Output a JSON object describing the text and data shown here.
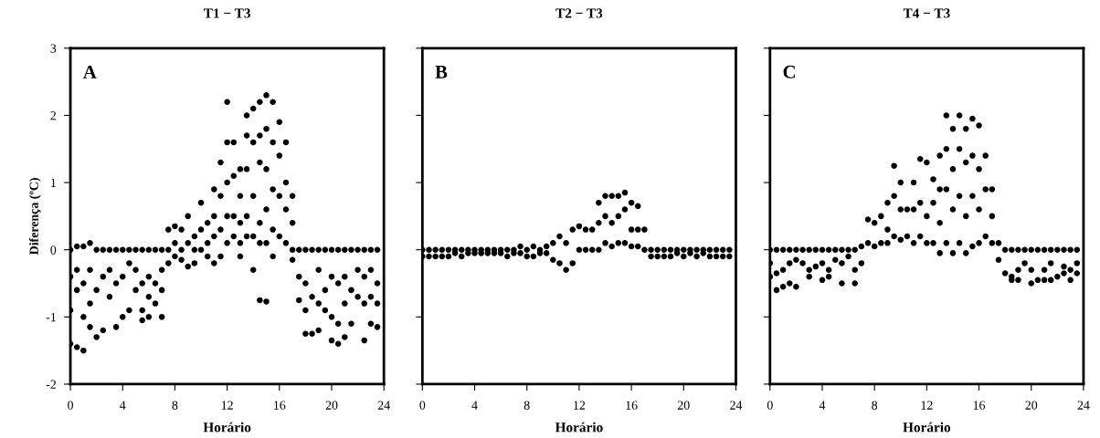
{
  "chart_data": [
    {
      "type": "scatter",
      "title": "T1 − T3",
      "xlabel": "Horário",
      "ylabel": "Diferença (ºC)",
      "annotations": [
        "A"
      ],
      "marker": "circle",
      "grid": false,
      "xlim": [
        0,
        24
      ],
      "xticks": [
        0,
        4,
        8,
        12,
        16,
        20,
        24
      ],
      "ylim": [
        -2,
        3
      ],
      "yticks": [
        -2,
        -1,
        0,
        1,
        2,
        3
      ],
      "series": [
        {
          "color": "#000000",
          "x": [
            0,
            0,
            0,
            0,
            0.5,
            0.5,
            0.5,
            0.5,
            1,
            1,
            1,
            1,
            1.5,
            1.5,
            1.5,
            1.5,
            2,
            2,
            2,
            2.5,
            2.5,
            2.5,
            3,
            3,
            3,
            3.5,
            3.5,
            3.5,
            4,
            4,
            4,
            4.5,
            4.5,
            4.5,
            5,
            5,
            5,
            5.5,
            5.5,
            5.5,
            5.5,
            6,
            6,
            6,
            6,
            6.5,
            6.5,
            6.5,
            7,
            7,
            7,
            7,
            7.5,
            7.5,
            7.5,
            8,
            8,
            8,
            8.5,
            8.5,
            8.5,
            9,
            9,
            9,
            9.5,
            9.5,
            9.5,
            10,
            10,
            10,
            10.5,
            10.5,
            10.5,
            11,
            11,
            11,
            11,
            11.5,
            11.5,
            11.5,
            11.5,
            12,
            12,
            12,
            12,
            12,
            12.5,
            12.5,
            12.5,
            12.5,
            13,
            13,
            13,
            13,
            13,
            13.5,
            13.5,
            13.5,
            13.5,
            13.5,
            14,
            14,
            14,
            14,
            14,
            14.5,
            14.5,
            14.5,
            14.5,
            14.5,
            14.5,
            15,
            15,
            15,
            15,
            15,
            15,
            15.5,
            15.5,
            15.5,
            15.5,
            15.5,
            16,
            16,
            16,
            16,
            16.5,
            16.5,
            16.5,
            16.5,
            17,
            17,
            17,
            17,
            17.5,
            17.5,
            17.5,
            18,
            18,
            18,
            18,
            18.5,
            18.5,
            18.5,
            19,
            19,
            19,
            19,
            19.5,
            19.5,
            19.5,
            20,
            20,
            20,
            20,
            20.5,
            20.5,
            20.5,
            20.5,
            21,
            21,
            21,
            21,
            21.5,
            21.5,
            21.5,
            22,
            22,
            22,
            22.5,
            22.5,
            22.5,
            22.5,
            23,
            23,
            23,
            23,
            23.5,
            23.5,
            23.5,
            23.5
          ],
          "values": [
            0,
            -0.4,
            -0.9,
            -1.4,
            0.05,
            -0.3,
            -0.6,
            -1.45,
            0.05,
            -0.5,
            -1.0,
            -1.5,
            0.1,
            -0.3,
            -0.8,
            -1.15,
            0,
            -0.6,
            -1.3,
            0,
            -0.4,
            -1.2,
            0,
            -0.3,
            -0.7,
            0,
            -0.5,
            -1.15,
            0,
            -0.4,
            -1.0,
            0,
            -0.2,
            -0.9,
            0,
            -0.3,
            -0.6,
            0,
            -0.5,
            -0.9,
            -1.05,
            0,
            -0.4,
            -0.7,
            -1.0,
            0,
            -0.5,
            -0.8,
            0,
            -0.3,
            -0.6,
            -1.0,
            0.3,
            0,
            -0.2,
            0.35,
            0.1,
            -0.1,
            0.3,
            0,
            -0.15,
            0.5,
            0.1,
            -0.25,
            0.2,
            0,
            -0.2,
            0.7,
            0.3,
            0,
            0.4,
            0.1,
            -0.1,
            0.9,
            0.5,
            0.2,
            -0.2,
            1.3,
            0.8,
            0.3,
            -0.1,
            2.2,
            1.6,
            1.0,
            0.5,
            0.1,
            1.6,
            1.1,
            0.5,
            0.2,
            1.2,
            0.8,
            0.4,
            0.1,
            -0.1,
            2.0,
            1.7,
            1.2,
            0.5,
            0.2,
            2.1,
            1.6,
            0.8,
            0.2,
            -0.3,
            2.2,
            1.7,
            1.3,
            0.4,
            0.1,
            -0.75,
            2.3,
            1.8,
            1.2,
            0.6,
            0.1,
            -0.77,
            2.2,
            1.6,
            0.9,
            0.3,
            -0.1,
            1.9,
            1.4,
            0.8,
            0.2,
            1.6,
            1.0,
            0.6,
            0.1,
            0.8,
            0.4,
            0,
            -0.15,
            0,
            -0.4,
            -0.75,
            0,
            -0.5,
            -0.9,
            -1.25,
            0,
            -0.7,
            -1.25,
            0,
            -0.3,
            -0.8,
            -1.2,
            0,
            -0.6,
            -0.9,
            0,
            -0.4,
            -1.0,
            -1.35,
            0,
            -0.5,
            -1.1,
            -1.4,
            0,
            -0.4,
            -0.8,
            -1.3,
            0,
            -0.6,
            -1.1,
            0,
            -0.3,
            -0.7,
            0,
            -0.4,
            -0.8,
            -1.35,
            0,
            -0.3,
            -0.7,
            -1.1,
            0,
            -0.5,
            -0.8,
            -1.15
          ]
        }
      ]
    },
    {
      "type": "scatter",
      "title": "T2 − T3",
      "xlabel": "Horário",
      "annotations": [
        "B"
      ],
      "marker": "circle",
      "grid": false,
      "tick_labels": "x",
      "xlim": [
        0,
        24
      ],
      "xticks": [
        0,
        4,
        8,
        12,
        16,
        20,
        24
      ],
      "ylim": [
        -2,
        3
      ],
      "yticks": [
        -2,
        -1,
        0,
        1,
        2,
        3
      ],
      "series": [
        {
          "color": "#000000",
          "x": [
            0,
            0,
            0.5,
            0.5,
            1,
            1,
            1.5,
            1.5,
            2,
            2,
            2.5,
            2.5,
            3,
            3,
            3.5,
            3.5,
            4,
            4,
            4.5,
            4.5,
            5,
            5,
            5.5,
            5.5,
            6,
            6,
            6.5,
            6.5,
            7,
            7,
            7.5,
            7.5,
            8,
            8,
            8.5,
            8.5,
            9,
            9,
            9.5,
            9.5,
            10,
            10,
            10.5,
            10.5,
            11,
            11,
            11.5,
            11.5,
            12,
            12,
            12.5,
            12.5,
            13,
            13,
            13.5,
            13.5,
            13.5,
            14,
            14,
            14,
            14.5,
            14.5,
            14.5,
            15,
            15,
            15,
            15.5,
            15.5,
            15.5,
            16,
            16,
            16,
            16.5,
            16.5,
            16.5,
            17,
            17,
            17.5,
            17.5,
            18,
            18,
            18.5,
            18.5,
            19,
            19,
            19.5,
            19.5,
            20,
            20,
            20.5,
            20.5,
            21,
            21,
            21.5,
            21.5,
            22,
            22,
            22.5,
            22.5,
            23,
            23,
            23.5,
            23.5
          ],
          "values": [
            0,
            -0.1,
            0,
            -0.1,
            0,
            -0.1,
            0,
            -0.1,
            0,
            -0.1,
            0,
            -0.05,
            0,
            -0.1,
            0,
            -0.05,
            0,
            -0.05,
            0,
            -0.05,
            0,
            -0.05,
            0,
            -0.05,
            0,
            -0.05,
            0,
            -0.1,
            0,
            -0.05,
            0.05,
            -0.05,
            0,
            -0.1,
            0.05,
            -0.1,
            0,
            -0.05,
            0.05,
            -0.05,
            0.1,
            -0.15,
            0.2,
            -0.2,
            0.1,
            -0.3,
            0.3,
            -0.2,
            0.35,
            0,
            0.3,
            0,
            0.3,
            0,
            0.7,
            0.4,
            0,
            0.8,
            0.5,
            0.1,
            0.8,
            0.4,
            0.05,
            0.8,
            0.5,
            0.1,
            0.85,
            0.6,
            0.1,
            0.7,
            0.3,
            0.05,
            0.65,
            0.3,
            0.05,
            0.3,
            0,
            0,
            -0.1,
            0,
            -0.1,
            0,
            -0.1,
            0,
            -0.1,
            0,
            -0.05,
            0,
            -0.1,
            0,
            -0.05,
            0,
            -0.1,
            0,
            -0.05,
            0,
            -0.1,
            0,
            -0.1,
            0,
            -0.1,
            0,
            -0.1
          ]
        }
      ]
    },
    {
      "type": "scatter",
      "title": "T4 − T3",
      "xlabel": "Horário",
      "annotations": [
        "C"
      ],
      "marker": "circle",
      "grid": false,
      "tick_labels": "x",
      "xlim": [
        0,
        24
      ],
      "xticks": [
        0,
        4,
        8,
        12,
        16,
        20,
        24
      ],
      "ylim": [
        -2,
        3
      ],
      "yticks": [
        -2,
        -1,
        0,
        1,
        2,
        3
      ],
      "series": [
        {
          "color": "#000000",
          "x": [
            0,
            0,
            0,
            0.5,
            0.5,
            0.5,
            1,
            1,
            1,
            1.5,
            1.5,
            1.5,
            2,
            2,
            2,
            2.5,
            2.5,
            3,
            3,
            3,
            3.5,
            3.5,
            4,
            4,
            4,
            4.5,
            4.5,
            4.5,
            5,
            5,
            5.5,
            5.5,
            5.5,
            6,
            6,
            6.5,
            6.5,
            6.5,
            7,
            7,
            7.5,
            7.5,
            8,
            8,
            8.5,
            8.5,
            9,
            9,
            9,
            9.5,
            9.5,
            9.5,
            10,
            10,
            10,
            10.5,
            10.5,
            11,
            11,
            11,
            11.5,
            11.5,
            11.5,
            12,
            12,
            12,
            12.5,
            12.5,
            12.5,
            13,
            13,
            13,
            13,
            13.5,
            13.5,
            13.5,
            13.5,
            14,
            14,
            14,
            14,
            14.5,
            14.5,
            14.5,
            14.5,
            15,
            15,
            15,
            15,
            15.5,
            15.5,
            15.5,
            15.5,
            16,
            16,
            16,
            16,
            16.5,
            16.5,
            16.5,
            17,
            17,
            17,
            17.5,
            17.5,
            18,
            18,
            18.5,
            18.5,
            18.5,
            19,
            19,
            19,
            19.5,
            19.5,
            20,
            20,
            20,
            20.5,
            20.5,
            21,
            21,
            21,
            21.5,
            21.5,
            21.5,
            22,
            22,
            22.5,
            22.5,
            22.5,
            23,
            23,
            23,
            23.5,
            23.5,
            23.5
          ],
          "values": [
            0,
            -0.2,
            -0.4,
            0,
            -0.35,
            -0.6,
            0,
            -0.3,
            -0.55,
            0,
            -0.2,
            -0.5,
            0,
            -0.15,
            -0.55,
            0,
            -0.2,
            0,
            -0.3,
            -0.4,
            0,
            -0.25,
            0,
            -0.2,
            -0.45,
            0,
            -0.3,
            -0.4,
            0,
            -0.15,
            0,
            -0.2,
            -0.5,
            0,
            -0.1,
            0,
            -0.3,
            -0.5,
            0.05,
            -0.2,
            0.45,
            0.1,
            0.4,
            0.05,
            0.5,
            0.1,
            0.7,
            0.3,
            0.1,
            1.25,
            0.8,
            0.2,
            1.0,
            0.6,
            0.15,
            0.6,
            0.2,
            1.0,
            0.6,
            0.1,
            1.35,
            0.7,
            0.2,
            1.3,
            0.5,
            0.1,
            1.05,
            0.7,
            0.1,
            1.4,
            0.9,
            0.4,
            -0.05,
            2.0,
            1.5,
            0.9,
            0.1,
            1.8,
            1.2,
            0.6,
            -0.05,
            2.0,
            1.5,
            0.8,
            0.1,
            1.8,
            1.3,
            0.5,
            -0.05,
            1.95,
            1.4,
            0.8,
            0.05,
            1.85,
            1.2,
            0.6,
            0.1,
            1.4,
            0.9,
            0.2,
            0.9,
            0.5,
            0.1,
            0.1,
            -0.15,
            0,
            -0.35,
            0,
            -0.4,
            -0.45,
            0,
            -0.3,
            -0.45,
            0,
            -0.2,
            0,
            -0.3,
            -0.5,
            0,
            -0.45,
            0,
            -0.3,
            -0.45,
            0,
            -0.2,
            -0.45,
            0,
            -0.4,
            0,
            -0.25,
            -0.35,
            0,
            -0.3,
            -0.45,
            0,
            -0.2,
            -0.35
          ]
        }
      ]
    }
  ]
}
